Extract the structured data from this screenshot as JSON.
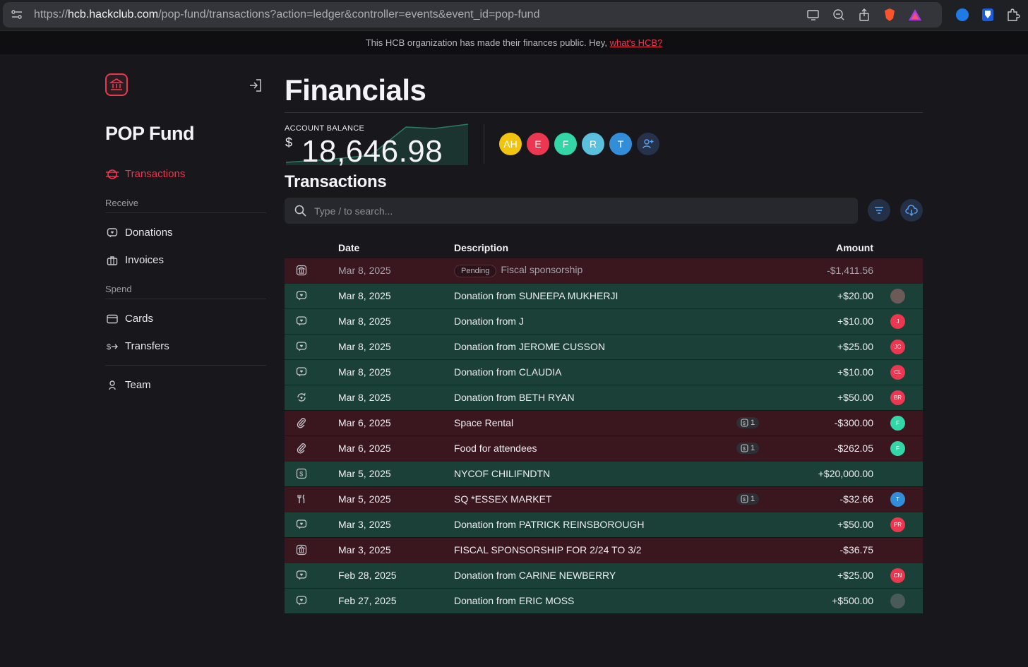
{
  "browser": {
    "url_domain": "hcb.hackclub.com",
    "url_prefix": "https://",
    "url_path": "/pop-fund/transactions?action=ledger&controller=events&event_id=pop-fund"
  },
  "banner": {
    "text": "This HCB organization has made their finances public. Hey,",
    "link": "what's HCB?"
  },
  "sidebar": {
    "org_name": "POP Fund",
    "active_item": "Transactions",
    "receive_label": "Receive",
    "receive_items": [
      "Donations",
      "Invoices"
    ],
    "spend_label": "Spend",
    "spend_items": [
      "Cards",
      "Transfers"
    ],
    "team_item": "Team"
  },
  "main": {
    "title": "Financials",
    "balance_label": "ACCOUNT BALANCE",
    "balance_currency": "$",
    "balance_value": "18,646.98",
    "members": [
      {
        "initials": "AH",
        "color": "#f1c40f"
      },
      {
        "initials": "E",
        "color": "#ec3750"
      },
      {
        "initials": "F",
        "color": "#33d6a6"
      },
      {
        "initials": "R",
        "color": "#5bc0de"
      },
      {
        "initials": "T",
        "color": "#338eda"
      }
    ],
    "transactions_title": "Transactions",
    "search_placeholder": "Type / to search..."
  },
  "table": {
    "headers": {
      "date": "Date",
      "description": "Description",
      "amount": "Amount"
    },
    "rows": [
      {
        "icon": "bank-icon",
        "type": "neg",
        "pending": "Pending",
        "date": "Mar 8, 2025",
        "description": "Fiscal sponsorship",
        "receipts": "",
        "amount": "-$1,411.56",
        "user": "",
        "user_color": ""
      },
      {
        "icon": "donation-icon",
        "type": "pos",
        "date": "Mar 8, 2025",
        "description": "Donation from SUNEEPA MUKHERJI",
        "receipts": "",
        "amount": "+$20.00",
        "user": "",
        "user_color": "#6b5a55"
      },
      {
        "icon": "donation-icon",
        "type": "pos",
        "date": "Mar 8, 2025",
        "description": "Donation from J",
        "receipts": "",
        "amount": "+$10.00",
        "user": "J",
        "user_color": "#ec3750"
      },
      {
        "icon": "donation-icon",
        "type": "pos",
        "date": "Mar 8, 2025",
        "description": "Donation from JEROME CUSSON",
        "receipts": "",
        "amount": "+$25.00",
        "user": "JC",
        "user_color": "#ec3750"
      },
      {
        "icon": "donation-icon",
        "type": "pos",
        "date": "Mar 8, 2025",
        "description": "Donation from CLAUDIA",
        "receipts": "",
        "amount": "+$10.00",
        "user": "CL",
        "user_color": "#ec3750"
      },
      {
        "icon": "recurring-donation-icon",
        "type": "pos",
        "date": "Mar 8, 2025",
        "description": "Donation from BETH RYAN",
        "receipts": "",
        "amount": "+$50.00",
        "user": "BR",
        "user_color": "#ec3750"
      },
      {
        "icon": "paperclip-icon",
        "type": "neg",
        "date": "Mar 6, 2025",
        "description": "Space Rental",
        "receipts": "1",
        "amount": "-$300.00",
        "user": "F",
        "user_color": "#33d6a6"
      },
      {
        "icon": "paperclip-icon",
        "type": "neg",
        "date": "Mar 6, 2025",
        "description": "Food for attendees",
        "receipts": "1",
        "amount": "-$262.05",
        "user": "F",
        "user_color": "#33d6a6"
      },
      {
        "icon": "check-deposit-icon",
        "type": "pos",
        "date": "Mar 5, 2025",
        "description": "NYCOF CHILIFNDTN",
        "receipts": "",
        "amount": "+$20,000.00",
        "user": "",
        "user_color": ""
      },
      {
        "icon": "fork-knife-icon",
        "type": "neg",
        "date": "Mar 5, 2025",
        "description": "SQ *ESSEX MARKET",
        "receipts": "1",
        "amount": "-$32.66",
        "user": "T",
        "user_color": "#338eda"
      },
      {
        "icon": "donation-icon",
        "type": "pos",
        "date": "Mar 3, 2025",
        "description": "Donation from PATRICK REINSBOROUGH",
        "receipts": "",
        "amount": "+$50.00",
        "user": "PR",
        "user_color": "#ec3750"
      },
      {
        "icon": "bank-icon",
        "type": "neg",
        "date": "Mar 3, 2025",
        "description": "FISCAL SPONSORSHIP FOR 2/24 TO 3/2",
        "receipts": "",
        "amount": "-$36.75",
        "user": "",
        "user_color": ""
      },
      {
        "icon": "donation-icon",
        "type": "pos",
        "date": "Feb 28, 2025",
        "description": "Donation from CARINE NEWBERRY",
        "receipts": "",
        "amount": "+$25.00",
        "user": "CN",
        "user_color": "#ec3750"
      },
      {
        "icon": "donation-icon",
        "type": "pos",
        "date": "Feb 27, 2025",
        "description": "Donation from ERIC MOSS",
        "receipts": "",
        "amount": "+$500.00",
        "user": "",
        "user_color": "#4a5a58"
      }
    ]
  },
  "colors": {
    "accent": "#ec3750",
    "positive_row": "#1b4038",
    "negative_row": "#3a161f"
  }
}
